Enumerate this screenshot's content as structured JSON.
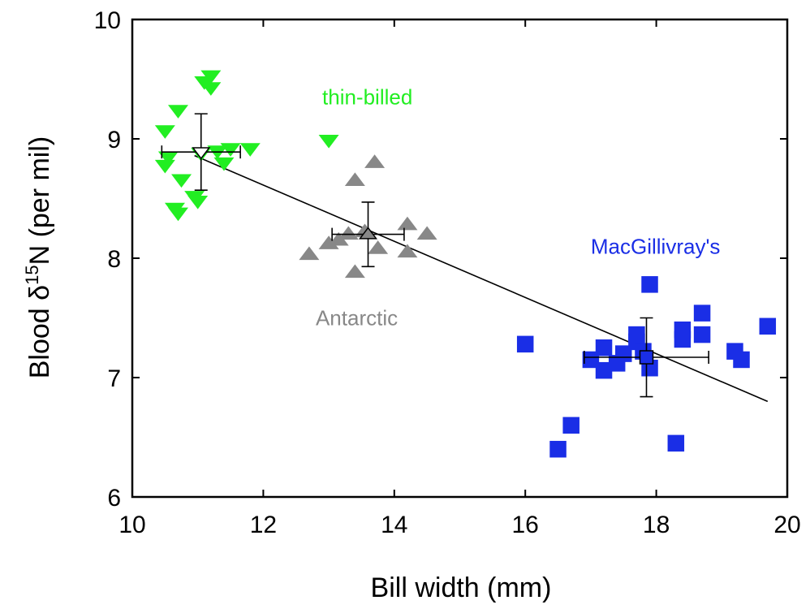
{
  "chart_data": {
    "type": "scatter",
    "xlabel": "Bill width (mm)",
    "ylabel": {
      "main": "Blood δ",
      "sup": "15",
      "rest": "N (per mil)"
    },
    "xlim": [
      10,
      20
    ],
    "ylim": [
      6,
      10
    ],
    "xticks": [
      10,
      12,
      14,
      16,
      18,
      20
    ],
    "yticks": [
      6,
      7,
      8,
      9,
      10
    ],
    "xtick_labels": [
      "10",
      "12",
      "14",
      "16",
      "18",
      "20"
    ],
    "ytick_labels": [
      "6",
      "7",
      "8",
      "9",
      "10"
    ],
    "grid": false,
    "series": [
      {
        "name": "thin-billed",
        "color": "#22ee22",
        "marker": "triangle-down",
        "label_pos": [
          12.9,
          9.35
        ],
        "points": [
          [
            10.5,
            9.07
          ],
          [
            10.7,
            9.24
          ],
          [
            10.5,
            8.78
          ],
          [
            10.55,
            8.85
          ],
          [
            10.75,
            8.66
          ],
          [
            10.65,
            8.42
          ],
          [
            10.7,
            8.38
          ],
          [
            10.95,
            8.52
          ],
          [
            11.0,
            8.48
          ],
          [
            11.1,
            9.48
          ],
          [
            11.2,
            9.53
          ],
          [
            11.2,
            9.43
          ],
          [
            11.05,
            8.88
          ],
          [
            11.3,
            8.9
          ],
          [
            11.4,
            8.8
          ],
          [
            11.5,
            8.92
          ],
          [
            11.8,
            8.92
          ],
          [
            13.0,
            8.99
          ]
        ],
        "mean": {
          "x": 11.05,
          "y": 8.89,
          "x_err": 0.6,
          "y_err": 0.32
        }
      },
      {
        "name": "Antarctic",
        "color": "#888888",
        "marker": "triangle-up",
        "label_pos": [
          12.8,
          7.5
        ],
        "points": [
          [
            12.7,
            8.03
          ],
          [
            13.0,
            8.12
          ],
          [
            13.15,
            8.15
          ],
          [
            13.3,
            8.2
          ],
          [
            13.4,
            8.65
          ],
          [
            13.4,
            7.88
          ],
          [
            13.7,
            8.8
          ],
          [
            13.75,
            8.08
          ],
          [
            14.2,
            8.05
          ],
          [
            14.2,
            8.28
          ],
          [
            14.5,
            8.2
          ],
          [
            13.55,
            8.22
          ]
        ],
        "mean": {
          "x": 13.6,
          "y": 8.2,
          "x_err": 0.55,
          "y_err": 0.27
        }
      },
      {
        "name": "MacGillivray's",
        "color": "#1a2ee6",
        "marker": "square",
        "label_pos": [
          17.0,
          8.1
        ],
        "points": [
          [
            16.0,
            7.28
          ],
          [
            16.5,
            6.4
          ],
          [
            16.7,
            6.6
          ],
          [
            17.0,
            7.15
          ],
          [
            17.2,
            7.25
          ],
          [
            17.2,
            7.06
          ],
          [
            17.4,
            7.12
          ],
          [
            17.5,
            7.2
          ],
          [
            17.7,
            7.3
          ],
          [
            17.7,
            7.36
          ],
          [
            17.8,
            7.22
          ],
          [
            17.9,
            7.08
          ],
          [
            17.9,
            7.78
          ],
          [
            18.3,
            6.45
          ],
          [
            18.4,
            7.32
          ],
          [
            18.4,
            7.4
          ],
          [
            18.7,
            7.36
          ],
          [
            18.7,
            7.54
          ],
          [
            19.2,
            7.22
          ],
          [
            19.3,
            7.15
          ],
          [
            19.7,
            7.43
          ]
        ],
        "mean": {
          "x": 17.85,
          "y": 7.17,
          "x_err": 0.95,
          "y_err": 0.33
        }
      }
    ],
    "regression_line": {
      "x1": 10.95,
      "y1": 8.86,
      "x2": 19.7,
      "y2": 6.8
    }
  }
}
